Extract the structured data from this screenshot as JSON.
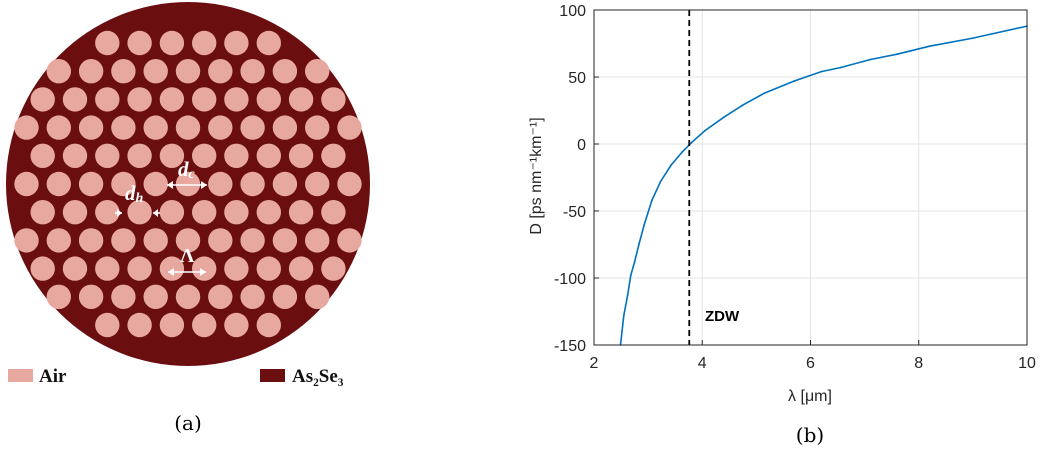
{
  "panel_a": {
    "caption": "(a)",
    "colors": {
      "matrix": "#6b0e10",
      "hole": "#e6a89f",
      "arrow": "#ffffff"
    },
    "legend": [
      {
        "material": "air",
        "label": "Air",
        "color": "#e6a89f"
      },
      {
        "material": "glass",
        "label": "As₂Se₃",
        "color": "#6b0e10"
      }
    ],
    "annotations": {
      "core_spacing": {
        "symbol": "d",
        "subscript": "c"
      },
      "hole_diameter": {
        "symbol": "d",
        "subscript": "h"
      },
      "pitch": {
        "symbol": "Λ"
      }
    }
  },
  "panel_b": {
    "caption": "(b)"
  },
  "chart_data": {
    "type": "line",
    "xlabel": "λ [μm]",
    "ylabel": "D [ps nm⁻¹km⁻¹]",
    "xlim": [
      2,
      10
    ],
    "ylim": [
      -150,
      100
    ],
    "xticks": [
      "2",
      "4",
      "6",
      "8",
      "10"
    ],
    "yticks": [
      "-150",
      "-100",
      "-50",
      "0",
      "50",
      "100"
    ],
    "grid": true,
    "series": [
      {
        "color": "#0072bd",
        "x": [
          2.49,
          2.55,
          2.62,
          2.68,
          2.75,
          2.83,
          2.93,
          3.07,
          3.23,
          3.42,
          3.63,
          3.8,
          4.05,
          4.4,
          4.75,
          5.15,
          5.7,
          6.2,
          6.55,
          7.1,
          7.6,
          8.2,
          9.0,
          10.0
        ],
        "y": [
          -150,
          -128,
          -113,
          -98,
          -88,
          -75,
          -60,
          -42,
          -28,
          -16,
          -6,
          1,
          10,
          20,
          29,
          38,
          47,
          54,
          57,
          63,
          67,
          73,
          79,
          88
        ]
      }
    ],
    "vline": {
      "x": 3.76,
      "style": "dashed",
      "color": "#000000",
      "label": "ZDW",
      "label_x": 4.05,
      "label_y": -132
    }
  }
}
